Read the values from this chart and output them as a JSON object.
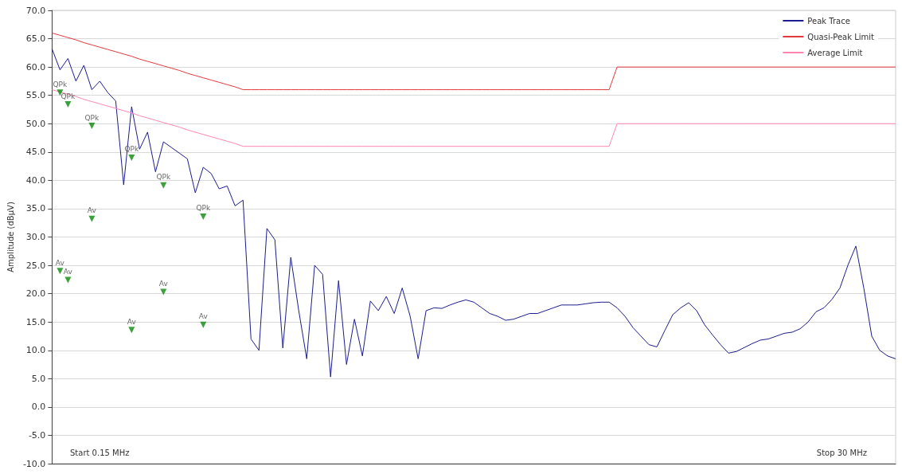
{
  "chart_data": {
    "type": "line",
    "ylabel": "Amplitude (dBµV)",
    "annotations": [
      "Start 0.15 MHz",
      "Stop 30 MHz"
    ],
    "categories": [
      null,
      null,
      null,
      null,
      null,
      null,
      null,
      null,
      null,
      null,
      null,
      null,
      null,
      null,
      null,
      null,
      null,
      null,
      null,
      null,
      null,
      null,
      null,
      null,
      null,
      null,
      null,
      null,
      null,
      null,
      null,
      null,
      null,
      null,
      null,
      null,
      null,
      null,
      null,
      null,
      null,
      null,
      null,
      null,
      null,
      null,
      null,
      null,
      null,
      null,
      null,
      null,
      null,
      null,
      null,
      null,
      null,
      null,
      null,
      null,
      null,
      null,
      null,
      null,
      null,
      null,
      null,
      null,
      null,
      null,
      null,
      null,
      null,
      null,
      null,
      null,
      null,
      null,
      null,
      null,
      null,
      null,
      null,
      null,
      null,
      null,
      null,
      null,
      null,
      null,
      null,
      null,
      null,
      null,
      null,
      null,
      null,
      null,
      null,
      null,
      null,
      null,
      null,
      null,
      null,
      null,
      null
    ],
    "ylim": [
      -10,
      70
    ],
    "yticks": [
      {
        "value": -10,
        "label": "-10.0"
      },
      {
        "value": -5,
        "label": "-5.0"
      },
      {
        "value": 0,
        "label": "0.0"
      },
      {
        "value": 5,
        "label": "5.0"
      },
      {
        "value": 10,
        "label": "10.0"
      },
      {
        "value": 15,
        "label": "15.0"
      },
      {
        "value": 20,
        "label": "20.0"
      },
      {
        "value": 25,
        "label": "25.0"
      },
      {
        "value": 30,
        "label": "30.0"
      },
      {
        "value": 35,
        "label": "35.0"
      },
      {
        "value": 40,
        "label": "40.0"
      },
      {
        "value": 45,
        "label": "45.0"
      },
      {
        "value": 50,
        "label": "50.0"
      },
      {
        "value": 55,
        "label": "55.0"
      },
      {
        "value": 60,
        "label": "60.0"
      },
      {
        "value": 65,
        "label": "65.0"
      },
      {
        "value": 70,
        "label": "70.0"
      }
    ],
    "grid": "y",
    "legend": "top right",
    "tick_labels": "y",
    "series": [
      {
        "name": "Peak Trace",
        "color": "#1c1c8e",
        "values": [
          63.2,
          59.5,
          61.5,
          57.5,
          60.3,
          56.0,
          57.5,
          55.5,
          54.0,
          39.2,
          53.0,
          45.5,
          48.5,
          41.5,
          46.8,
          45.8,
          44.8,
          43.8,
          37.8,
          42.3,
          41.2,
          38.5,
          39.0,
          35.5,
          36.5,
          12.0,
          10.0,
          31.5,
          29.5,
          10.4,
          26.4,
          17.0,
          8.5,
          25.0,
          23.4,
          5.3,
          22.3,
          7.5,
          15.5,
          9.0,
          18.7,
          17.0,
          19.5,
          16.5,
          21.0,
          16.0,
          8.5,
          17.0,
          17.5,
          17.4,
          18.0,
          18.5,
          18.9,
          18.5,
          17.5,
          16.5,
          16.0,
          15.3,
          15.5,
          16.0,
          16.5,
          16.5,
          17.0,
          17.5,
          18.0,
          18.0,
          18.0,
          18.2,
          18.4,
          18.5,
          18.5,
          17.5,
          16.0,
          14.0,
          12.5,
          11.0,
          10.6,
          13.5,
          16.3,
          17.5,
          18.4,
          17.0,
          14.5,
          12.7,
          11.0,
          9.5,
          9.8,
          10.5,
          11.2,
          11.8,
          12.0,
          12.5,
          13.0,
          13.2,
          13.8,
          15.0,
          16.8,
          17.5,
          19.0,
          21.0,
          25.0,
          28.4,
          21.0,
          12.5,
          10.0,
          9.0,
          8.5
        ]
      },
      {
        "name": "Quasi-Peak Limit",
        "color": "#e0393e",
        "values": [
          66,
          65.6,
          65.2,
          64.8,
          64.3,
          63.9,
          63.5,
          63.1,
          62.7,
          62.3,
          61.9,
          61.4,
          61.0,
          60.6,
          60.2,
          59.8,
          59.4,
          58.9,
          58.5,
          58.1,
          57.7,
          57.3,
          56.9,
          56.5,
          56,
          56,
          56,
          56,
          56,
          56,
          56,
          56,
          56,
          56,
          56,
          56,
          56,
          56,
          56,
          56,
          56,
          56,
          56,
          56,
          56,
          56,
          56,
          56,
          56,
          56,
          56,
          56,
          56,
          56,
          56,
          56,
          56,
          56,
          56,
          56,
          56,
          56,
          56,
          56,
          56,
          56,
          56,
          56,
          56,
          56,
          56,
          60,
          60,
          60,
          60,
          60,
          60,
          60,
          60,
          60,
          60,
          60,
          60,
          60,
          60,
          60,
          60,
          60,
          60,
          60,
          60,
          60,
          60,
          60,
          60,
          60,
          60,
          60,
          60,
          60,
          60,
          60,
          60,
          60,
          60,
          60,
          60
        ]
      },
      {
        "name": "Average Limit",
        "color": "#ff85b5",
        "values": [
          56,
          55.6,
          55.2,
          54.8,
          54.3,
          53.9,
          53.5,
          53.1,
          52.7,
          52.3,
          51.9,
          51.4,
          51.0,
          50.6,
          50.2,
          49.8,
          49.4,
          48.9,
          48.5,
          48.1,
          47.7,
          47.3,
          46.9,
          46.5,
          46,
          46,
          46,
          46,
          46,
          46,
          46,
          46,
          46,
          46,
          46,
          46,
          46,
          46,
          46,
          46,
          46,
          46,
          46,
          46,
          46,
          46,
          46,
          46,
          46,
          46,
          46,
          46,
          46,
          46,
          46,
          46,
          46,
          46,
          46,
          46,
          46,
          46,
          46,
          46,
          46,
          46,
          46,
          46,
          46,
          46,
          46,
          50,
          50,
          50,
          50,
          50,
          50,
          50,
          50,
          50,
          50,
          50,
          50,
          50,
          50,
          50,
          50,
          50,
          50,
          50,
          50,
          50,
          50,
          50,
          50,
          50,
          50,
          50,
          50,
          50,
          50,
          50,
          50,
          50,
          50,
          50,
          50
        ]
      },
      {
        "type": "scatter",
        "marker": "triangle",
        "color": "#0a8a0a",
        "values": [
          null,
          55.5,
          53.4,
          null,
          null,
          49.6,
          null,
          null,
          null,
          null,
          44.0,
          null,
          null,
          null,
          39.1,
          null,
          null,
          null,
          null,
          33.6,
          null,
          null,
          null,
          null,
          null,
          null,
          null,
          null,
          null,
          null,
          null,
          null,
          null,
          null,
          null,
          null,
          null,
          null,
          null,
          null,
          null,
          null,
          null,
          null,
          null,
          null,
          null,
          null,
          null,
          null,
          null,
          null,
          null,
          null,
          null,
          null,
          null,
          null,
          null,
          null,
          null,
          null,
          null,
          null,
          null,
          null,
          null,
          null,
          null,
          null,
          null,
          null,
          null,
          null,
          null,
          null,
          null,
          null,
          null,
          null,
          null,
          null,
          null,
          null,
          null,
          null,
          null,
          null,
          null,
          null,
          null,
          null,
          null,
          null,
          null,
          null,
          null,
          null,
          null,
          null,
          null,
          null,
          null,
          null,
          null,
          null,
          null
        ],
        "value_labels": [
          null,
          "QPk",
          "QPk",
          null,
          null,
          "QPk",
          null,
          null,
          null,
          null,
          "QPk",
          null,
          null,
          null,
          "QPk",
          null,
          null,
          null,
          null,
          "QPk",
          null,
          null,
          null,
          null,
          null,
          null,
          null,
          null,
          null,
          null,
          null,
          null,
          null,
          null,
          null,
          null,
          null,
          null,
          null,
          null,
          null,
          null,
          null,
          null,
          null,
          null,
          null,
          null,
          null,
          null,
          null,
          null,
          null,
          null,
          null,
          null,
          null,
          null,
          null,
          null,
          null,
          null,
          null,
          null,
          null,
          null,
          null,
          null,
          null,
          null,
          null,
          null,
          null,
          null,
          null,
          null,
          null,
          null,
          null,
          null,
          null,
          null,
          null,
          null,
          null,
          null,
          null,
          null,
          null,
          null,
          null,
          null,
          null,
          null,
          null,
          null,
          null,
          null,
          null,
          null,
          null,
          null,
          null,
          null,
          null,
          null,
          null
        ]
      },
      {
        "type": "scatter",
        "marker": "triangle",
        "color": "#0a8a0a",
        "values": [
          null,
          24.0,
          22.4,
          null,
          null,
          33.2,
          null,
          null,
          null,
          null,
          13.6,
          null,
          null,
          null,
          20.3,
          null,
          null,
          null,
          null,
          14.5,
          null,
          null,
          null,
          null,
          null,
          null,
          null,
          null,
          null,
          null,
          null,
          null,
          null,
          null,
          null,
          null,
          null,
          null,
          null,
          null,
          null,
          null,
          null,
          null,
          null,
          null,
          null,
          null,
          null,
          null,
          null,
          null,
          null,
          null,
          null,
          null,
          null,
          null,
          null,
          null,
          null,
          null,
          null,
          null,
          null,
          null,
          null,
          null,
          null,
          null,
          null,
          null,
          null,
          null,
          null,
          null,
          null,
          null,
          null,
          null,
          null,
          null,
          null,
          null,
          null,
          null,
          null,
          null,
          null,
          null,
          null,
          null,
          null,
          null,
          null,
          null,
          null,
          null,
          null,
          null,
          null,
          null,
          null,
          null,
          null,
          null,
          null
        ],
        "value_labels": [
          null,
          "Av",
          "Av",
          null,
          null,
          "Av",
          null,
          null,
          null,
          null,
          "Av",
          null,
          null,
          null,
          "Av",
          null,
          null,
          null,
          null,
          "Av",
          null,
          null,
          null,
          null,
          null,
          null,
          null,
          null,
          null,
          null,
          null,
          null,
          null,
          null,
          null,
          null,
          null,
          null,
          null,
          null,
          null,
          null,
          null,
          null,
          null,
          null,
          null,
          null,
          null,
          null,
          null,
          null,
          null,
          null,
          null,
          null,
          null,
          null,
          null,
          null,
          null,
          null,
          null,
          null,
          null,
          null,
          null,
          null,
          null,
          null,
          null,
          null,
          null,
          null,
          null,
          null,
          null,
          null,
          null,
          null,
          null,
          null,
          null,
          null,
          null,
          null,
          null,
          null,
          null,
          null,
          null,
          null,
          null,
          null,
          null,
          null,
          null,
          null,
          null,
          null,
          null,
          null,
          null,
          null,
          null,
          null,
          null
        ]
      }
    ]
  }
}
